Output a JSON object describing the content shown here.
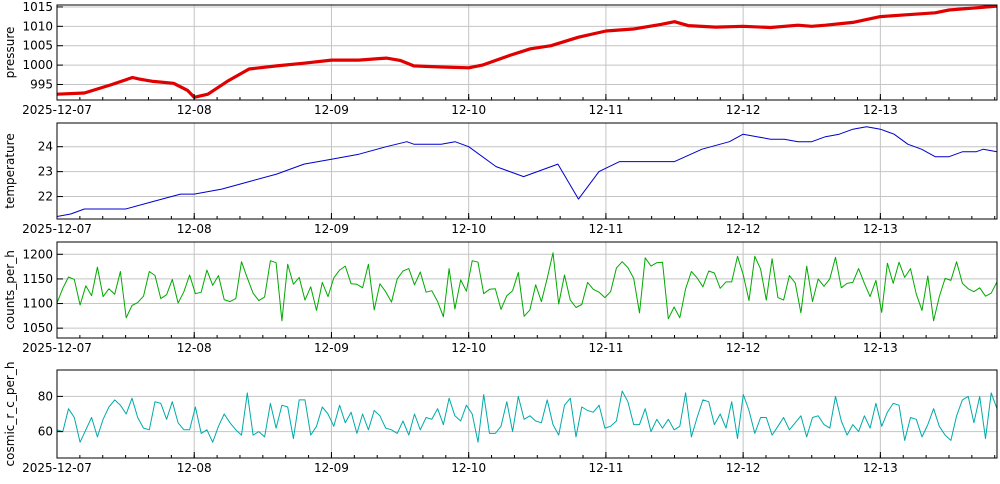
{
  "chart_data": [
    {
      "type": "line",
      "ylabel": "pressure",
      "color": "#e00000",
      "ylim": [
        991,
        1015.5
      ],
      "yticks": [
        995,
        1000,
        1005,
        1010,
        1015
      ],
      "xlim": [
        0,
        6.85
      ],
      "xticks": [
        0,
        1,
        2,
        3,
        4,
        5,
        6
      ],
      "xticklabels": [
        "2025-12-07",
        "12-08",
        "12-09",
        "12-10",
        "12-11",
        "12-12",
        "12-13"
      ],
      "grid": true,
      "series": [
        {
          "x": [
            0,
            0.2,
            0.4,
            0.55,
            0.6,
            0.7,
            0.85,
            0.95,
            1.0,
            1.1,
            1.25,
            1.4,
            1.6,
            1.8,
            2.0,
            2.2,
            2.4,
            2.5,
            2.6,
            2.8,
            3.0,
            3.1,
            3.3,
            3.45,
            3.6,
            3.8,
            4.0,
            4.2,
            4.4,
            4.5,
            4.6,
            4.8,
            5.0,
            5.2,
            5.4,
            5.5,
            5.6,
            5.8,
            6.0,
            6.2,
            6.4,
            6.5,
            6.6,
            6.85
          ],
          "y": [
            992.5,
            992.8,
            995.0,
            996.8,
            996.4,
            995.8,
            995.3,
            993.5,
            991.7,
            992.5,
            996.0,
            999.0,
            999.8,
            1000.5,
            1001.3,
            1001.3,
            1001.8,
            1001.2,
            999.8,
            999.5,
            999.3,
            1000.0,
            1002.5,
            1004.2,
            1005.0,
            1007.2,
            1008.8,
            1009.3,
            1010.5,
            1011.2,
            1010.2,
            1009.8,
            1010.0,
            1009.7,
            1010.3,
            1010.0,
            1010.3,
            1011.0,
            1012.5,
            1013.0,
            1013.5,
            1014.2,
            1014.5,
            1015.2
          ]
        }
      ]
    },
    {
      "type": "line",
      "ylabel": "temperature",
      "color": "#0000cc",
      "ylim": [
        21.1,
        24.95
      ],
      "yticks": [
        22,
        23,
        24
      ],
      "xlim": [
        0,
        6.85
      ],
      "xticks": [
        0,
        1,
        2,
        3,
        4,
        5,
        6
      ],
      "xticklabels": [
        "2025-12-07",
        "12-08",
        "12-09",
        "12-10",
        "12-11",
        "12-12",
        "12-13"
      ],
      "grid": true,
      "series": [
        {
          "x": [
            0,
            0.1,
            0.2,
            0.3,
            0.5,
            0.7,
            0.9,
            1.0,
            1.2,
            1.4,
            1.6,
            1.8,
            2.0,
            2.2,
            2.4,
            2.55,
            2.6,
            2.8,
            2.9,
            3.0,
            3.2,
            3.4,
            3.55,
            3.65,
            3.8,
            3.95,
            4.1,
            4.3,
            4.5,
            4.7,
            4.9,
            5.0,
            5.1,
            5.2,
            5.3,
            5.4,
            5.5,
            5.6,
            5.7,
            5.8,
            5.9,
            6.0,
            6.1,
            6.2,
            6.3,
            6.4,
            6.5,
            6.6,
            6.7,
            6.75,
            6.85
          ],
          "y": [
            21.2,
            21.3,
            21.5,
            21.5,
            21.5,
            21.8,
            22.1,
            22.1,
            22.3,
            22.6,
            22.9,
            23.3,
            23.5,
            23.7,
            24.0,
            24.2,
            24.1,
            24.1,
            24.2,
            24.0,
            23.2,
            22.8,
            23.1,
            23.3,
            21.9,
            23.0,
            23.4,
            23.4,
            23.4,
            23.9,
            24.2,
            24.5,
            24.4,
            24.3,
            24.3,
            24.2,
            24.2,
            24.4,
            24.5,
            24.7,
            24.8,
            24.7,
            24.5,
            24.1,
            23.9,
            23.6,
            23.6,
            23.8,
            23.8,
            23.9,
            23.8
          ]
        }
      ]
    },
    {
      "type": "line",
      "ylabel": "counts_per_h",
      "color": "#00aa00",
      "ylim": [
        1030,
        1225
      ],
      "yticks": [
        1050,
        1100,
        1150,
        1200
      ],
      "xlim": [
        0,
        6.85
      ],
      "xticks": [
        0,
        1,
        2,
        3,
        4,
        5,
        6
      ],
      "xticklabels": [
        "2025-12-07",
        "12-08",
        "12-09",
        "12-10",
        "12-11",
        "12-12",
        "12-13"
      ],
      "grid": true,
      "noise": {
        "n": 164,
        "center": 1135,
        "amplitude": 62,
        "seed": 17,
        "max": 1225,
        "min": 1030
      },
      "series": [
        {
          "y": []
        }
      ]
    },
    {
      "type": "line",
      "ylabel": "cosmic_r_c_per_h",
      "color": "#00aaaa",
      "ylim": [
        45,
        95
      ],
      "yticks": [
        60,
        80
      ],
      "xlim": [
        0,
        6.85
      ],
      "xticks": [
        0,
        1,
        2,
        3,
        4,
        5,
        6
      ],
      "xticklabels": [
        "2025-12-07",
        "12-08",
        "12-09",
        "12-10",
        "12-11",
        "12-12",
        "12-13"
      ],
      "grid": true,
      "noise": {
        "n": 164,
        "center": 68,
        "amplitude": 14,
        "seed": 5,
        "max": 93,
        "min": 47
      },
      "series": [
        {
          "y": []
        }
      ]
    }
  ]
}
